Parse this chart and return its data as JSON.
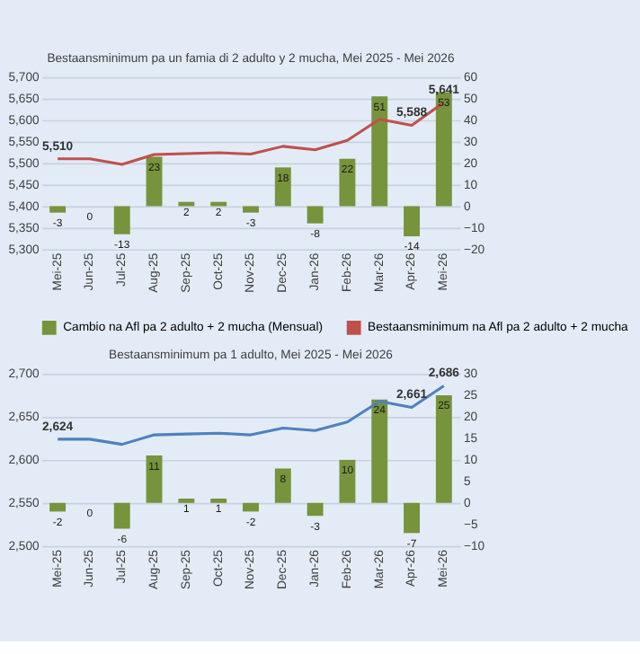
{
  "chart_data": [
    {
      "type": "bar",
      "title": "Bestaansminimum pa un famia di 2 adulto y 2 mucha, Mei 2025 - Mei 2026",
      "categories": [
        "Mei-25",
        "Jun-25",
        "Jul-25",
        "Aug-25",
        "Sep-25",
        "Oct-25",
        "Nov-25",
        "Dec-25",
        "Jan-26",
        "Feb-26",
        "Mar-26",
        "Apr-26",
        "Mei-26"
      ],
      "series": [
        {
          "name": "Cambio na Afl pa 2 adulto  + 2 mucha (Mensual)",
          "axis": "y2",
          "color": "#77933c",
          "values": [
            -3,
            0,
            -13,
            23,
            2,
            2,
            -3,
            18,
            -8,
            22,
            51,
            -14,
            53
          ],
          "value_labels": [
            "-3",
            "0",
            "-13",
            "23",
            "2",
            "2",
            "-3",
            "18",
            "-8",
            "22",
            "51",
            "-14",
            "53"
          ]
        },
        {
          "name": "Bestaansminimum na Afl pa 2 adulto  + 2 mucha",
          "type": "line",
          "color": "#c0504d",
          "values": [
            5510,
            5510,
            5497,
            5520,
            5522,
            5524,
            5521,
            5539,
            5531,
            5553,
            5602,
            5588,
            5641
          ],
          "value_labels": [
            "5,510",
            null,
            null,
            null,
            null,
            null,
            null,
            null,
            null,
            null,
            null,
            "5,588",
            "5,641"
          ]
        }
      ],
      "ylim": [
        5300,
        5700
      ],
      "yticks": [
        {
          "value": 5300,
          "label": "5,300"
        },
        {
          "value": 5350,
          "label": "5,350"
        },
        {
          "value": 5400,
          "label": "5,400"
        },
        {
          "value": 5450,
          "label": "5,450"
        },
        {
          "value": 5500,
          "label": "5,500"
        },
        {
          "value": 5550,
          "label": "5,550"
        },
        {
          "value": 5600,
          "label": "5,600"
        },
        {
          "value": 5650,
          "label": "5,650"
        },
        {
          "value": 5700,
          "label": "5,700"
        }
      ],
      "y2lim": [
        -20,
        60
      ],
      "y2ticks": [
        -20,
        -10,
        0,
        10,
        20,
        30,
        40,
        50,
        60
      ],
      "grid": "y",
      "legend": "bottom"
    },
    {
      "type": "bar",
      "title": "Bestaansminimum pa 1 adulto, Mei 2025 - Mei 2026",
      "categories": [
        "Mei-25",
        "Jun-25",
        "Jul-25",
        "Aug-25",
        "Sep-25",
        "Oct-25",
        "Nov-25",
        "Dec-25",
        "Jan-26",
        "Feb-26",
        "Mar-26",
        "Apr-26",
        "Mei-26"
      ],
      "series": [
        {
          "axis": "y2",
          "color": "#77933c",
          "values": [
            -2,
            0,
            -6,
            11,
            1,
            1,
            -2,
            8,
            -3,
            10,
            24,
            -7,
            25
          ],
          "value_labels": [
            "-2",
            "0",
            "-6",
            "11",
            "1",
            "1",
            "-2",
            "8",
            "-3",
            "10",
            "24",
            "-7",
            "25"
          ]
        },
        {
          "type": "line",
          "color": "#4f81bd",
          "values": [
            2624,
            2624,
            2618,
            2629,
            2630,
            2631,
            2629,
            2637,
            2634,
            2644,
            2668,
            2661,
            2686
          ],
          "value_labels": [
            "2,624",
            null,
            null,
            null,
            null,
            null,
            null,
            null,
            null,
            null,
            null,
            "2,661",
            "2,686"
          ]
        }
      ],
      "ylim": [
        2500,
        2700
      ],
      "yticks": [
        {
          "value": 2500,
          "label": "2,500"
        },
        {
          "value": 2550,
          "label": "2,550"
        },
        {
          "value": 2600,
          "label": "2,600"
        },
        {
          "value": 2650,
          "label": "2,650"
        },
        {
          "value": 2700,
          "label": "2,700"
        }
      ],
      "y2lim": [
        -10,
        30
      ],
      "y2ticks": [
        -10,
        -5,
        0,
        5,
        10,
        15,
        20,
        25,
        30
      ],
      "grid": "y"
    }
  ]
}
